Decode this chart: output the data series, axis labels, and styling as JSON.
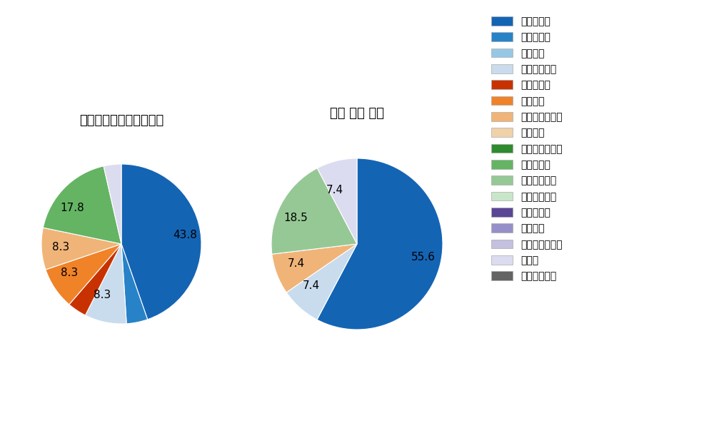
{
  "left_title": "パ・リーグ全プレイヤー",
  "right_title": "角中 勝也 選手",
  "legend_labels": [
    "ストレート",
    "ツーシーム",
    "シュート",
    "カットボール",
    "スプリット",
    "フォーク",
    "チェンジアップ",
    "シンカー",
    "高速スライダー",
    "スライダー",
    "縦スライダー",
    "パワーカーブ",
    "スクリュー",
    "ナックル",
    "ナックルカーブ",
    "カーブ",
    "スローカーブ"
  ],
  "legend_colors": [
    "#1464b4",
    "#2882c8",
    "#96c8e6",
    "#c8dced",
    "#c83200",
    "#f08228",
    "#f0b478",
    "#f0d2aa",
    "#2e8b2e",
    "#64b464",
    "#96c896",
    "#c8e6c8",
    "#5a4696",
    "#9690c8",
    "#c3c0e0",
    "#dcdcf0",
    "#646464"
  ],
  "left_values": [
    43.8,
    4.2,
    0.0,
    8.3,
    3.8,
    8.3,
    8.3,
    0.0,
    0.0,
    17.8,
    0.0,
    0.0,
    0.0,
    0.0,
    0.0,
    3.5,
    0.0
  ],
  "left_labels": [
    "43.8",
    "",
    "",
    "8.3",
    "",
    "8.3",
    "8.3",
    "",
    "",
    "17.8",
    "",
    "",
    "",
    "",
    "",
    "",
    ""
  ],
  "right_values": [
    55.6,
    0.0,
    0.0,
    7.4,
    0.0,
    0.0,
    7.4,
    0.0,
    0.0,
    0.0,
    18.5,
    0.0,
    0.0,
    0.0,
    0.0,
    7.4,
    0.0
  ],
  "right_labels": [
    "55.6",
    "",
    "",
    "7.4",
    "",
    "",
    "7.4",
    "",
    "",
    "",
    "18.5",
    "",
    "",
    "",
    "",
    "7.4",
    ""
  ],
  "background_color": "#ffffff"
}
